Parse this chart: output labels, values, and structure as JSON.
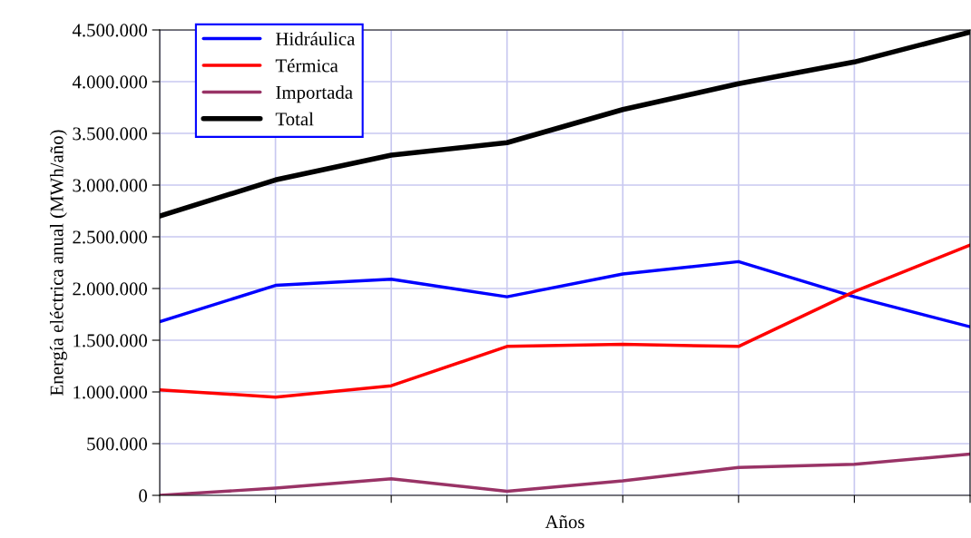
{
  "chart_data": {
    "type": "line",
    "xlabel": "Años",
    "ylabel": "Energía eléctrica anual (MWh/año)",
    "categories": [
      null,
      null,
      null,
      null,
      null,
      null,
      null,
      null
    ],
    "series": [
      {
        "name": "Hidráulica",
        "color": "#0000ff",
        "values": [
          1680000,
          2030000,
          2090000,
          1920000,
          2140000,
          2260000,
          1920000,
          1630000
        ]
      },
      {
        "name": "Térmica",
        "color": "#ff0000",
        "values": [
          1020000,
          950000,
          1060000,
          1440000,
          1460000,
          1440000,
          1970000,
          2420000
        ]
      },
      {
        "name": "Importada",
        "color": "#993366",
        "values": [
          0,
          70000,
          160000,
          40000,
          140000,
          270000,
          300000,
          400000
        ]
      },
      {
        "name": "Total",
        "color": "#000000",
        "values": [
          2700000,
          3050000,
          3290000,
          3410000,
          3730000,
          3980000,
          4190000,
          4480000
        ]
      }
    ],
    "ylim": [
      0,
      4500000
    ],
    "yticks": [
      0,
      {
        "value": 500000,
        "label": "500.000"
      },
      {
        "value": 1000000,
        "label": "1.000.000"
      },
      {
        "value": 1500000,
        "label": "1.500.000"
      },
      {
        "value": 2000000,
        "label": "2.000.000"
      },
      {
        "value": 2500000,
        "label": "2.500.000"
      },
      {
        "value": 3000000,
        "label": "3.000.000"
      },
      {
        "value": 3500000,
        "label": "3.500.000"
      },
      {
        "value": 4000000,
        "label": "4.000.000"
      },
      {
        "value": 4500000,
        "label": "4.500.000"
      }
    ],
    "grid": true,
    "legend": "top left",
    "marker": "none",
    "line_style": "solid"
  }
}
